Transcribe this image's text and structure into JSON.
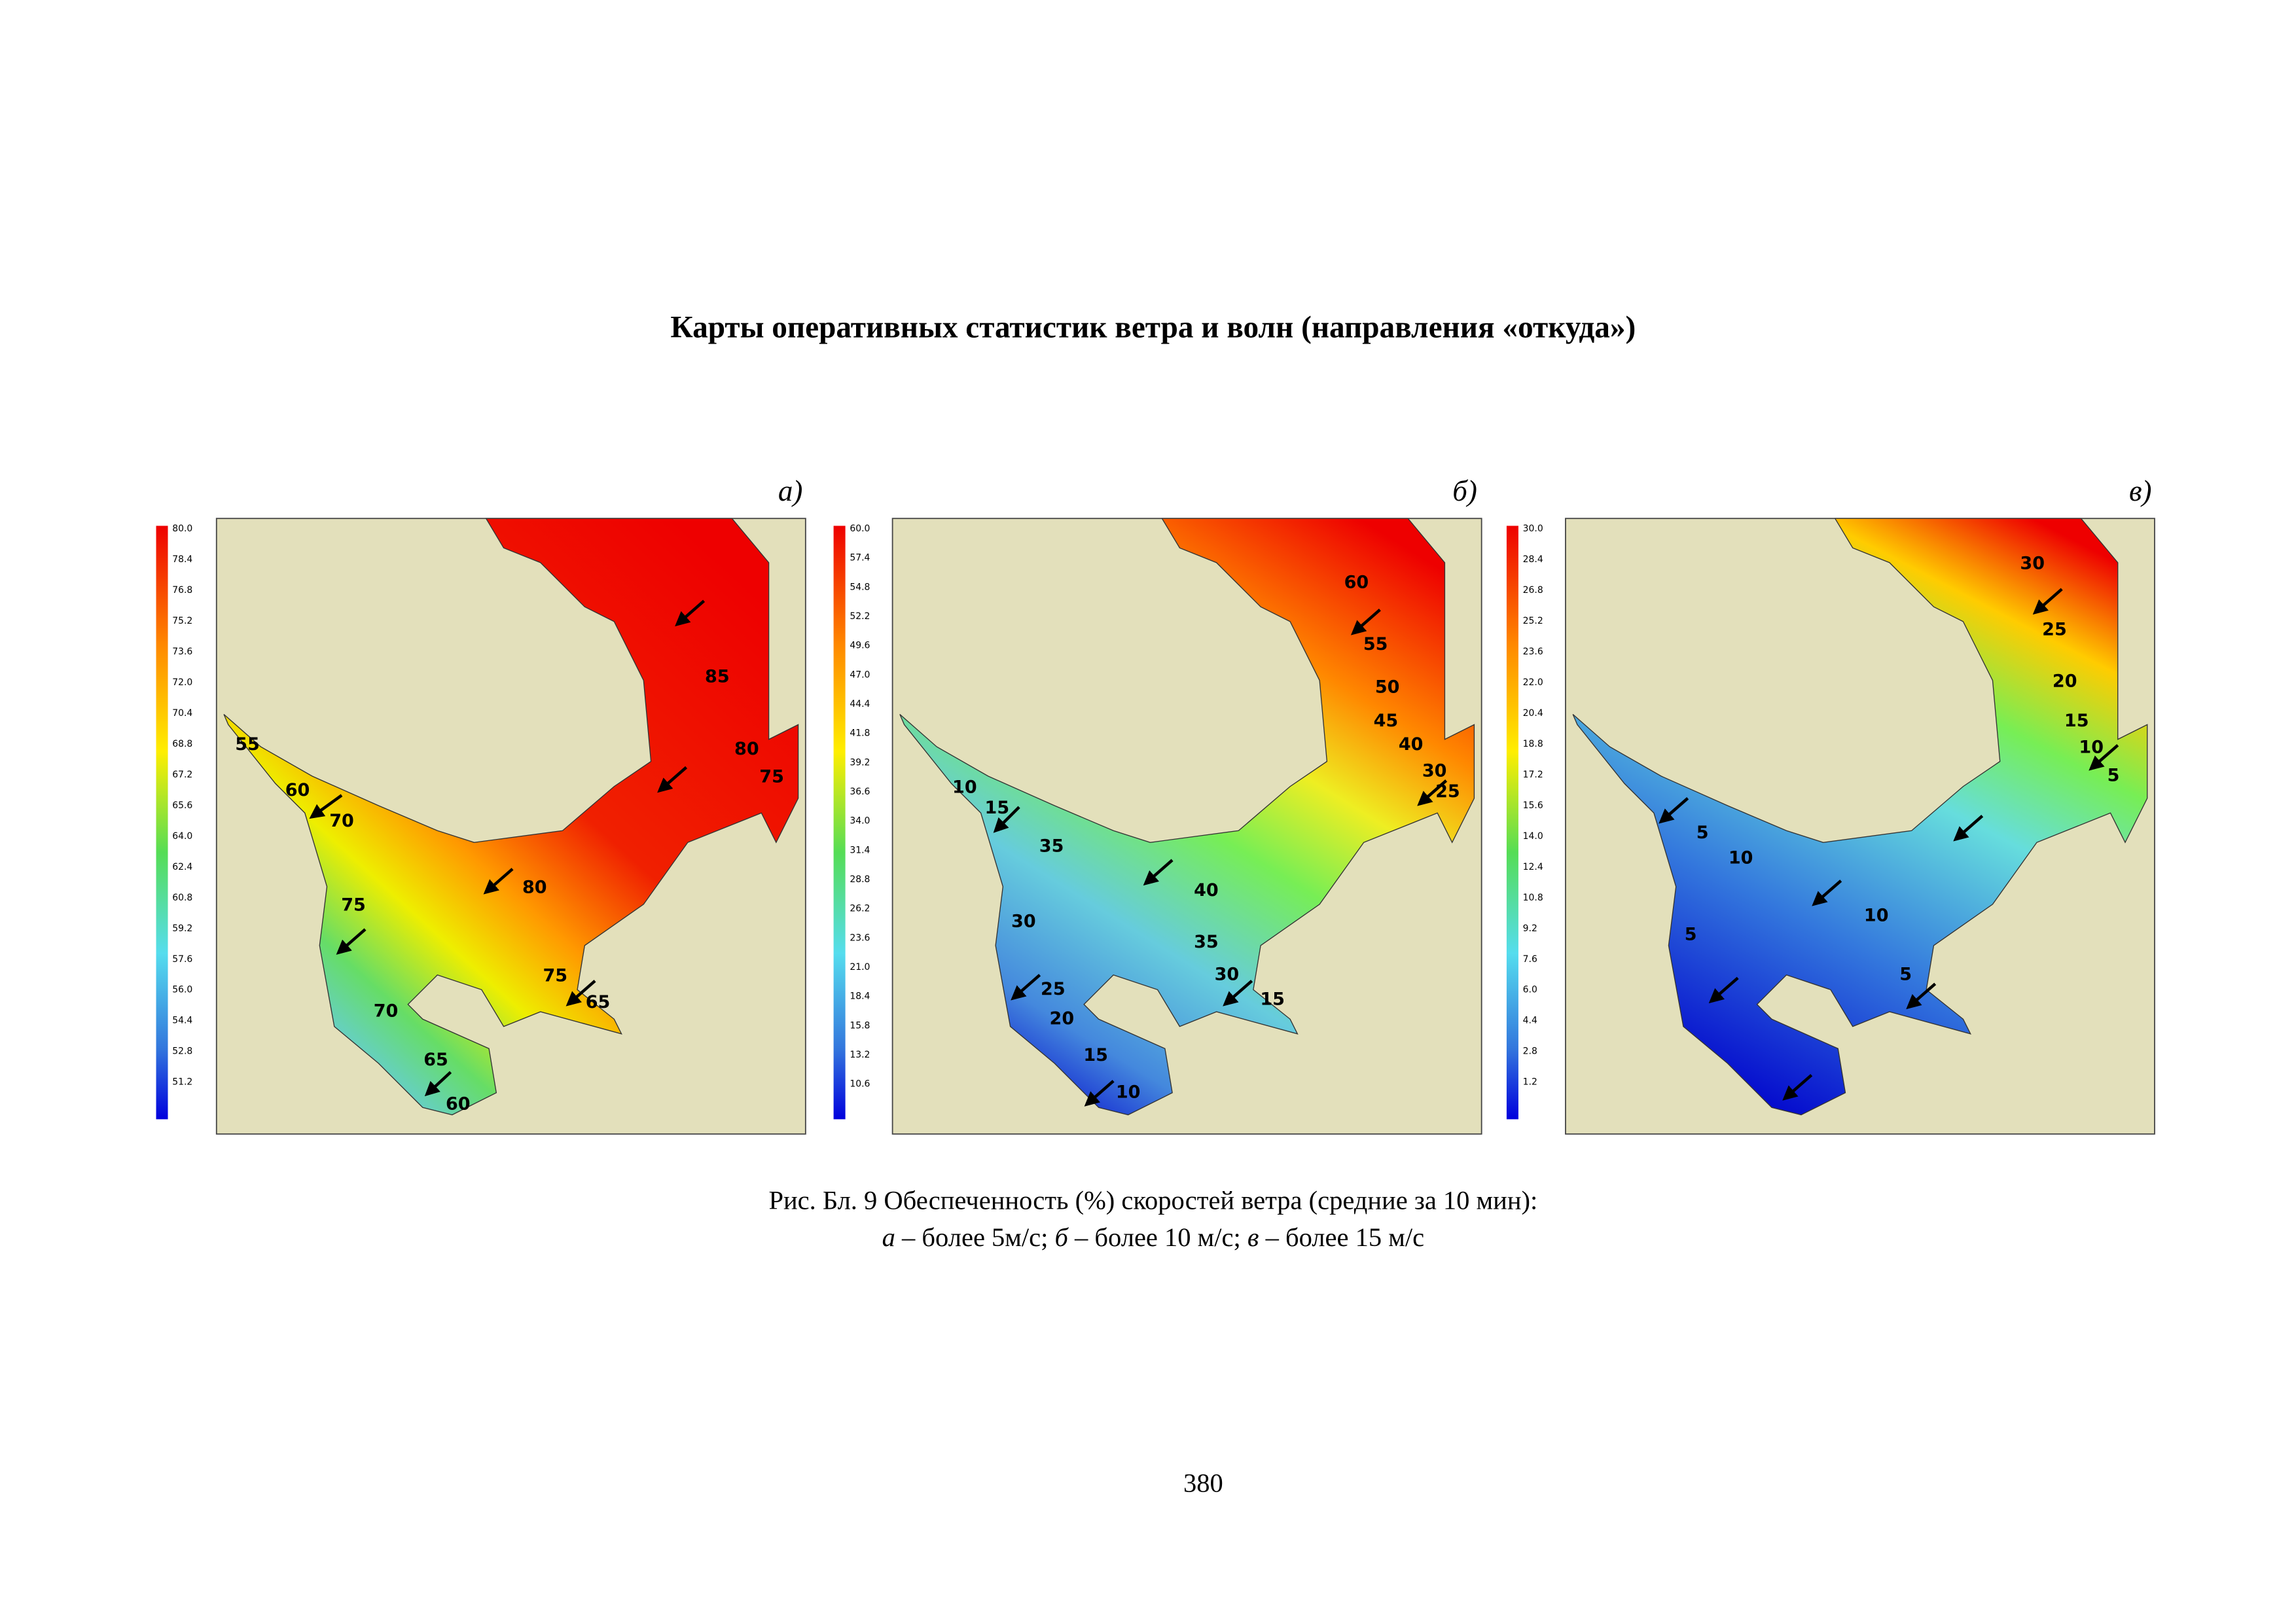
{
  "title": "Карты оперативных статистик ветра и волн (направления «откуда»)",
  "panels": [
    {
      "label": "а)",
      "colorbar": [
        "80.0",
        "78.4",
        "76.8",
        "75.2",
        "73.6",
        "72.0",
        "70.4",
        "68.8",
        "67.2",
        "65.6",
        "64.0",
        "62.4",
        "60.8",
        "59.2",
        "57.6",
        "56.0",
        "54.4",
        "52.8",
        "51.2"
      ],
      "contours": [
        "55",
        "60",
        "70",
        "75",
        "80",
        "85",
        "80",
        "75",
        "75",
        "65",
        "70",
        "65",
        "60"
      ]
    },
    {
      "label": "б)",
      "colorbar": [
        "60.0",
        "57.4",
        "54.8",
        "52.2",
        "49.6",
        "47.0",
        "44.4",
        "41.8",
        "39.2",
        "36.6",
        "34.0",
        "31.4",
        "28.8",
        "26.2",
        "23.6",
        "21.0",
        "18.4",
        "15.8",
        "13.2",
        "10.6"
      ],
      "contours": [
        "60",
        "55",
        "50",
        "45",
        "40",
        "30",
        "25",
        "10",
        "15",
        "35",
        "40",
        "30",
        "35",
        "30",
        "15",
        "25",
        "20",
        "15",
        "10"
      ]
    },
    {
      "label": "в)",
      "colorbar": [
        "30.0",
        "28.4",
        "26.8",
        "25.2",
        "23.6",
        "22.0",
        "20.4",
        "18.8",
        "17.2",
        "15.6",
        "14.0",
        "12.4",
        "10.8",
        "9.2",
        "7.6",
        "6.0",
        "4.4",
        "2.8",
        "1.2"
      ],
      "contours": [
        "30",
        "25",
        "20",
        "15",
        "10",
        "5",
        "5",
        "10",
        "5",
        "10",
        "5"
      ]
    }
  ],
  "caption": {
    "line1": "Рис. Бл. 9 Обеспеченность (%) скоростей ветра (средние за 10 мин):",
    "line2": [
      "а",
      " – более 5м/с; ",
      "б",
      " – более 10 м/с; ",
      "в",
      " – более 15 м/с"
    ]
  },
  "page_number": "380"
}
